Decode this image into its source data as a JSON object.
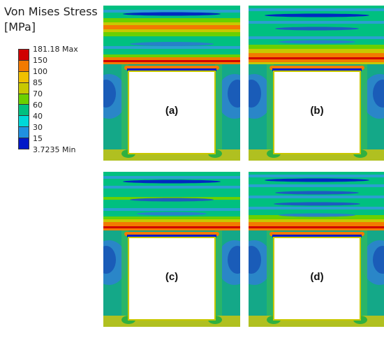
{
  "legend": {
    "title_line1": "Von Mises Stress",
    "title_line2": "[MPa]",
    "colors": [
      "#d00000",
      "#f27a00",
      "#f0c000",
      "#c8c800",
      "#6ad000",
      "#00c080",
      "#00d8d8",
      "#2090e0",
      "#0018c8"
    ],
    "labels": [
      "181.18 Max",
      "150",
      "100",
      "85",
      "70",
      "60",
      "40",
      "30",
      "15",
      "3.7235 Min"
    ]
  },
  "panels": [
    {
      "label": "(a)"
    },
    {
      "label": "(b)"
    },
    {
      "label": "(c)"
    },
    {
      "label": "(d)"
    }
  ]
}
